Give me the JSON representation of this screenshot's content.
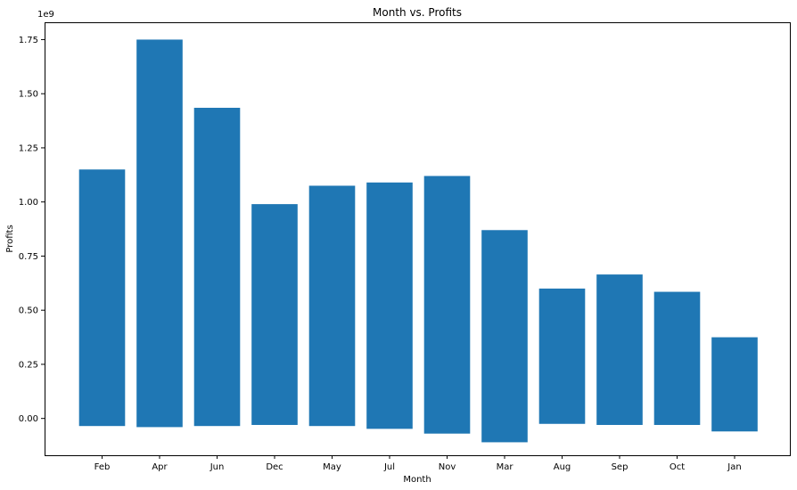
{
  "chart_data": {
    "type": "bar",
    "title": "Month vs. Profits",
    "xlabel": "Month",
    "ylabel": "Profits",
    "y_offset_label": "1e9",
    "scale": 1000000000,
    "ylim": [
      -0.17,
      1.83
    ],
    "yticks": [
      0.0,
      0.25,
      0.5,
      0.75,
      1.0,
      1.25,
      1.5,
      1.75
    ],
    "ytick_labels": [
      "0.00",
      "0.25",
      "0.50",
      "0.75",
      "1.00",
      "1.25",
      "1.50",
      "1.75"
    ],
    "grid": false,
    "categories": [
      "Feb",
      "Apr",
      "Jun",
      "Dec",
      "May",
      "Jul",
      "Nov",
      "Mar",
      "Aug",
      "Sep",
      "Oct",
      "Jan"
    ],
    "bottoms": [
      -0.035,
      -0.04,
      -0.035,
      -0.03,
      -0.035,
      -0.048,
      -0.07,
      -0.11,
      -0.025,
      -0.03,
      -0.03,
      -0.06
    ],
    "tops": [
      1.15,
      1.75,
      1.435,
      0.99,
      1.075,
      1.09,
      1.12,
      0.87,
      0.6,
      0.665,
      0.585,
      0.375
    ],
    "bar_color": "#1f77b4"
  }
}
